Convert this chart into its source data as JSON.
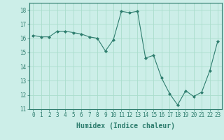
{
  "x": [
    0,
    1,
    2,
    3,
    4,
    5,
    6,
    7,
    8,
    9,
    10,
    11,
    12,
    13,
    14,
    15,
    16,
    17,
    18,
    19,
    20,
    21,
    22,
    23
  ],
  "y": [
    16.2,
    16.1,
    16.1,
    16.5,
    16.5,
    16.4,
    16.3,
    16.1,
    16.0,
    15.1,
    15.9,
    17.9,
    17.8,
    17.9,
    14.6,
    14.8,
    13.2,
    12.1,
    11.3,
    12.3,
    11.9,
    12.2,
    13.7,
    15.8
  ],
  "line_color": "#2e7d6e",
  "marker_color": "#2e7d6e",
  "bg_color": "#cceee8",
  "grid_color": "#aaddcc",
  "xlabel": "Humidex (Indice chaleur)",
  "ylim": [
    11,
    18.5
  ],
  "xlim": [
    -0.5,
    23.5
  ],
  "yticks": [
    11,
    12,
    13,
    14,
    15,
    16,
    17,
    18
  ],
  "xticks": [
    0,
    1,
    2,
    3,
    4,
    5,
    6,
    7,
    8,
    9,
    10,
    11,
    12,
    13,
    14,
    15,
    16,
    17,
    18,
    19,
    20,
    21,
    22,
    23
  ],
  "tick_fontsize": 5.5,
  "xlabel_fontsize": 7
}
